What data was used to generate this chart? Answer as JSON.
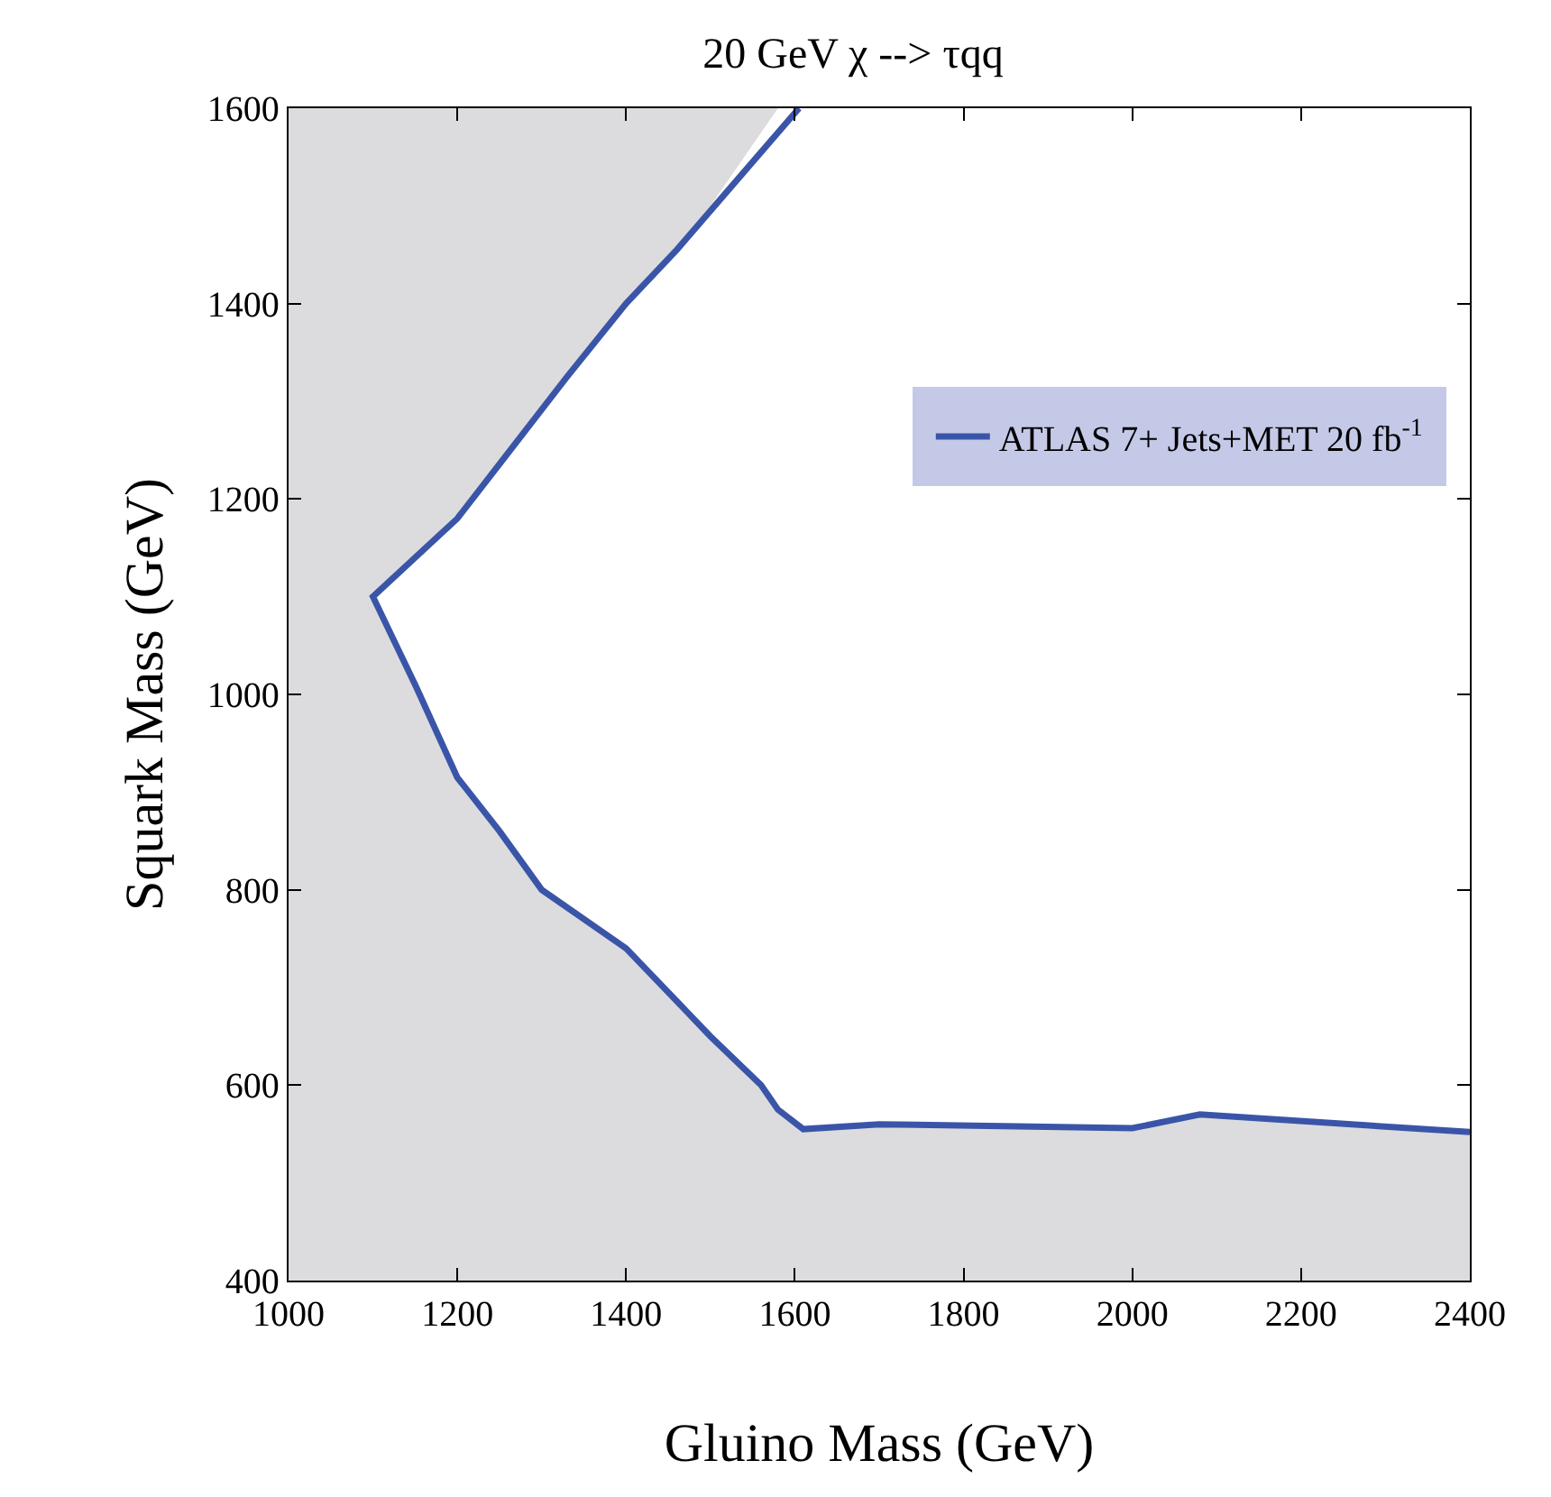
{
  "chart_data": {
    "type": "line",
    "title": "20 GeV χ --> τqq",
    "xlabel": "Gluino Mass (GeV)",
    "ylabel": "Squark Mass (GeV)",
    "xlim": [
      1000,
      2400
    ],
    "xticks": [
      1000,
      1200,
      1400,
      1600,
      1800,
      2000,
      2200,
      2400
    ],
    "ylim": [
      400,
      1600
    ],
    "yticks": [
      400,
      600,
      800,
      1000,
      1200,
      1400,
      1600
    ],
    "grid": false,
    "legend": "right",
    "marker": "none",
    "line_style": "solid",
    "series": [
      {
        "type": "area",
        "color": "#dcdcde",
        "x": [
          1000,
          1580,
          1500,
          1400,
          1300,
          1200,
          1100,
          1000
        ],
        "values": [
          1600,
          1600,
          1500,
          1400,
          1290,
          1185,
          1100,
          1000
        ]
      },
      {
        "type": "area",
        "color": "#dcdcde",
        "x": [
          1000,
          1100,
          1150,
          1200,
          1250,
          1300,
          1400,
          1500,
          1560,
          1580,
          1610,
          1700,
          2000,
          2080,
          2400
        ],
        "values": [
          1100,
          1100,
          1010,
          915,
          860,
          800,
          740,
          650,
          600,
          575,
          555,
          560,
          556,
          570,
          552
        ]
      },
      {
        "name": "ATLAS 7+ Jets+MET 20 fb$^{-1}$",
        "color": "#3a55a8",
        "x": [
          1605,
          1460,
          1400,
          1330,
          1200,
          1100,
          1150,
          1200,
          1250,
          1300,
          1400,
          1500,
          1560,
          1580,
          1610,
          1700,
          2000,
          2080,
          2400
        ],
        "values": [
          1600,
          1455,
          1400,
          1325,
          1180,
          1100,
          1010,
          915,
          860,
          800,
          740,
          650,
          600,
          575,
          555,
          560,
          556,
          570,
          552
        ]
      }
    ]
  }
}
